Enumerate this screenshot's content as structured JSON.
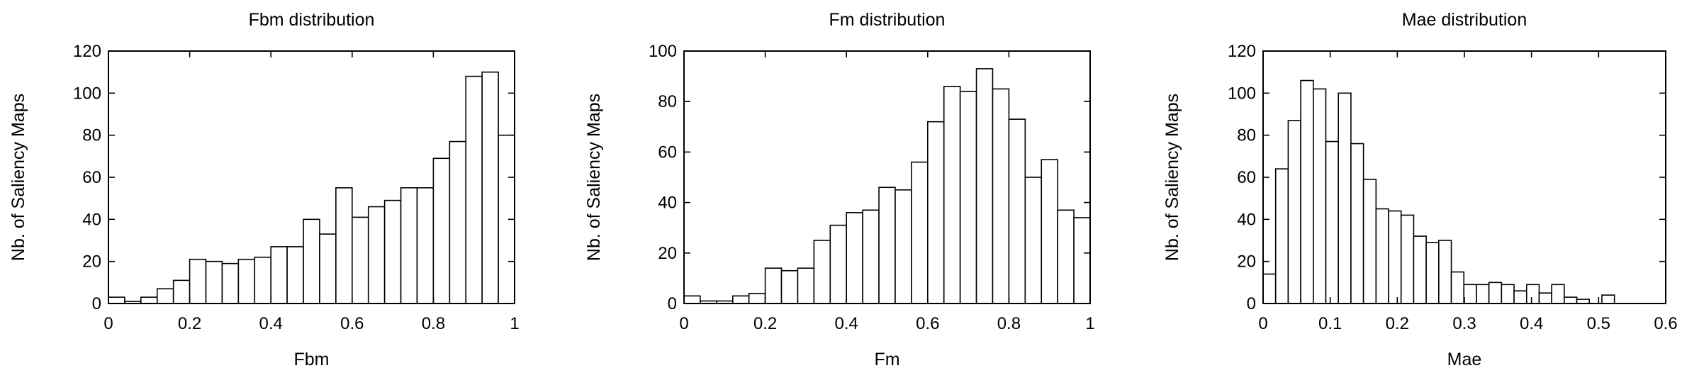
{
  "chart_data": [
    {
      "type": "bar",
      "title": "Fbm distribution",
      "xlabel": "Fbm",
      "ylabel": "Nb. of Saliency Maps",
      "xlim": [
        0,
        1
      ],
      "ylim": [
        0,
        120
      ],
      "xticks": [
        "0",
        "0.2",
        "0.4",
        "0.6",
        "0.8",
        "1"
      ],
      "yticks": [
        "0",
        "20",
        "40",
        "60",
        "80",
        "100",
        "120"
      ],
      "bin_width": 0.04,
      "values": [
        3,
        1,
        3,
        7,
        11,
        21,
        20,
        19,
        21,
        22,
        27,
        27,
        40,
        33,
        55,
        41,
        46,
        49,
        55,
        55,
        69,
        77,
        108,
        110,
        80
      ],
      "grid": false
    },
    {
      "type": "bar",
      "title": "Fm distribution",
      "xlabel": "Fm",
      "ylabel": "Nb. of Saliency Maps",
      "xlim": [
        0,
        1
      ],
      "ylim": [
        0,
        100
      ],
      "xticks": [
        "0",
        "0.2",
        "0.4",
        "0.6",
        "0.8",
        "1"
      ],
      "yticks": [
        "0",
        "20",
        "40",
        "60",
        "80",
        "100"
      ],
      "bin_width": 0.04,
      "values": [
        3,
        1,
        1,
        3,
        4,
        14,
        13,
        14,
        25,
        31,
        36,
        37,
        46,
        45,
        56,
        72,
        86,
        84,
        93,
        85,
        73,
        50,
        57,
        37,
        34
      ],
      "grid": false
    },
    {
      "type": "bar",
      "title": "Mae distribution",
      "xlabel": "Mae",
      "ylabel": "Nb. of Saliency Maps",
      "xlim": [
        0,
        0.6
      ],
      "ylim": [
        0,
        120
      ],
      "xticks": [
        "0",
        "0.1",
        "0.2",
        "0.3",
        "0.4",
        "0.5",
        "0.6"
      ],
      "yticks": [
        "0",
        "20",
        "40",
        "60",
        "80",
        "100",
        "120"
      ],
      "bin_width": 0.0187,
      "values": [
        14,
        64,
        87,
        106,
        102,
        77,
        100,
        76,
        59,
        45,
        44,
        42,
        32,
        29,
        30,
        15,
        9,
        9,
        10,
        9,
        6,
        9,
        5,
        9,
        3,
        2,
        0,
        4
      ],
      "grid": false
    }
  ]
}
